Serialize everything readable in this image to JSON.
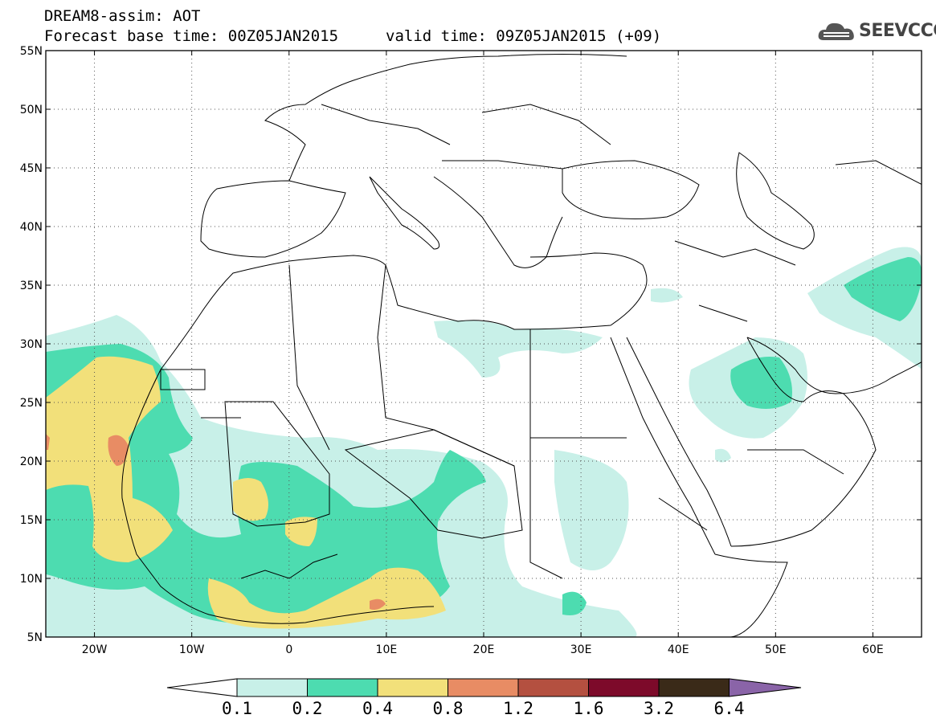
{
  "header": {
    "title_line1": "DREAM8-assim: AOT",
    "title_line2": "Forecast base time: 00Z05JAN2015",
    "valid_time": "valid time: 09Z05JAN2015 (+09)"
  },
  "logo": {
    "text": "SEEVCCC",
    "icon": "cloud-icon"
  },
  "map": {
    "lat_labels": [
      "55N",
      "50N",
      "45N",
      "40N",
      "35N",
      "30N",
      "25N",
      "20N",
      "15N",
      "10N",
      "5N"
    ],
    "lon_labels": [
      "20W",
      "10W",
      "0",
      "10E",
      "20E",
      "30E",
      "40E",
      "50E",
      "60E"
    ],
    "extent": {
      "lon_min": -25,
      "lon_max": 65,
      "lat_min": 5,
      "lat_max": 55
    },
    "grid": true
  },
  "colorbar": {
    "labels": [
      "0.1",
      "0.2",
      "0.4",
      "0.8",
      "1.2",
      "1.6",
      "3.2",
      "6.4"
    ],
    "colors": [
      "#ffffff",
      "#c8f0e8",
      "#4ddcb0",
      "#f2e07a",
      "#e88c64",
      "#b45040",
      "#7d0a2a",
      "#3a2a18",
      "#8a64a8"
    ]
  }
}
